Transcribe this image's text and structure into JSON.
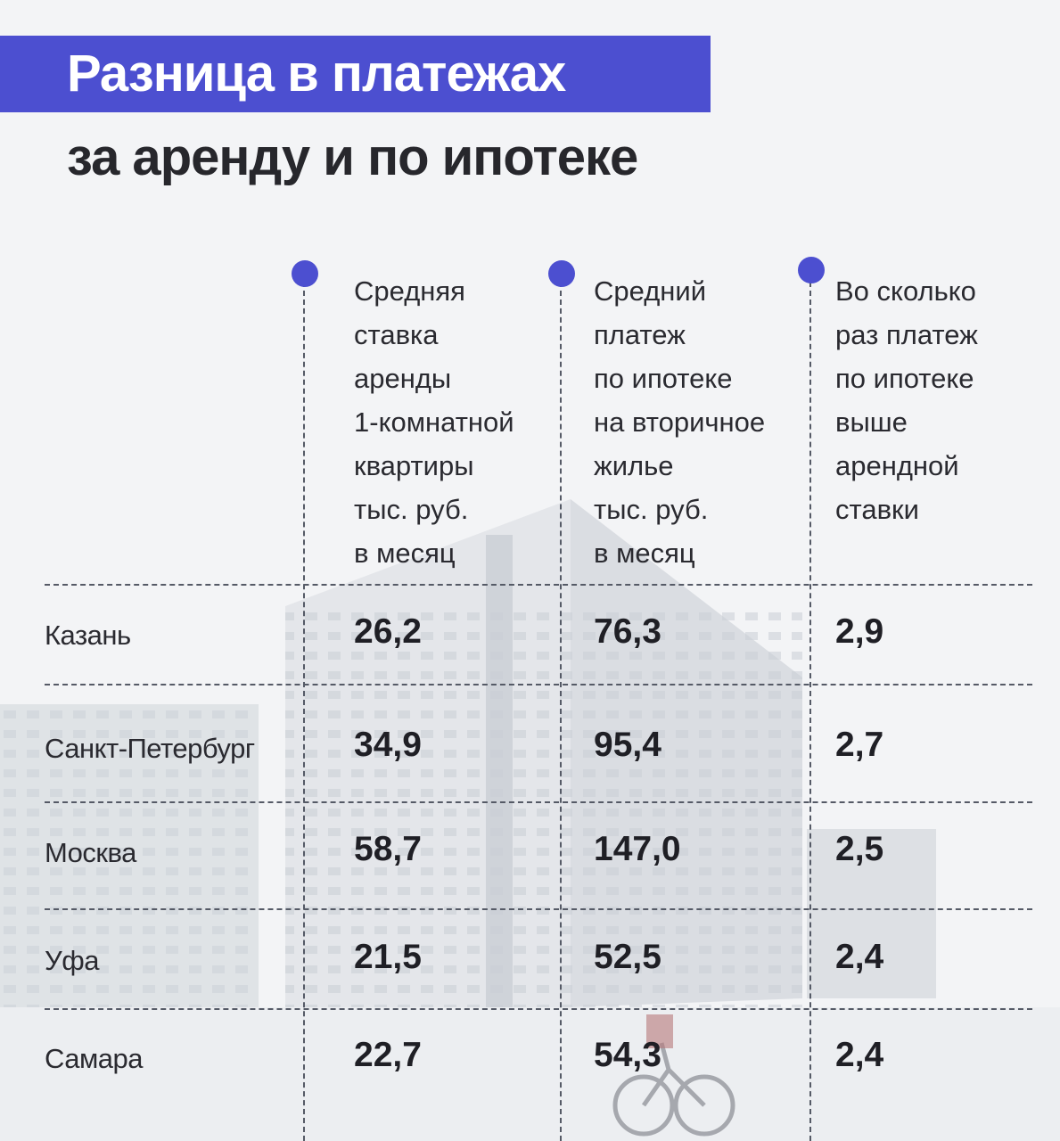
{
  "header": {
    "title": "Разница в платежах",
    "subtitle": "за аренду и по ипотеке"
  },
  "colors": {
    "accent": "#4c4fd0",
    "text": "#2a2a30",
    "background": "#f3f4f6"
  },
  "chart_data": {
    "type": "table",
    "columns": [
      "Средняя\nставка\nаренды\n1-комнатной\nквартиры\nтыс. руб.\nв месяц",
      "Средний\nплатеж\nпо ипотеке\nна вторичное\nжилье\nтыс. руб.\nв месяц",
      "Во сколько\nраз платеж\nпо ипотеке\nвыше\nарендной\nставки"
    ],
    "rows": [
      {
        "city": "Казань",
        "values": [
          "26,2",
          "76,3",
          "2,9"
        ]
      },
      {
        "city": "Санкт-Петербург",
        "values": [
          "34,9",
          "95,4",
          "2,7"
        ]
      },
      {
        "city": "Москва",
        "values": [
          "58,7",
          "147,0",
          "2,5"
        ]
      },
      {
        "city": "Уфа",
        "values": [
          "21,5",
          "52,5",
          "2,4"
        ]
      },
      {
        "city": "Самара",
        "values": [
          "22,7",
          "54,3",
          "2,4"
        ]
      }
    ]
  }
}
